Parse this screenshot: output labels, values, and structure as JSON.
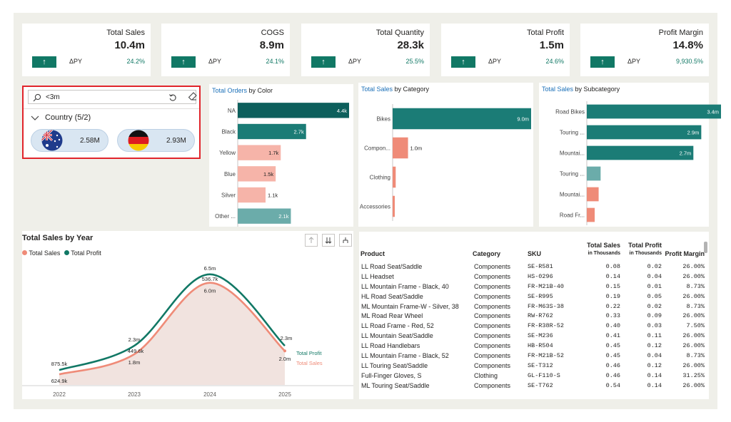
{
  "kpis": [
    {
      "title": "Total Sales",
      "value": "10.4m",
      "dpy": "ΔPY",
      "delta": "24.2%"
    },
    {
      "title": "COGS",
      "value": "8.9m",
      "dpy": "ΔPY",
      "delta": "24.1%"
    },
    {
      "title": "Total Quantity",
      "value": "28.3k",
      "dpy": "ΔPY",
      "delta": "25.5%"
    },
    {
      "title": "Total Profit",
      "value": "1.5m",
      "dpy": "ΔPY",
      "delta": "24.6%"
    },
    {
      "title": "Profit Margin",
      "value": "14.8%",
      "dpy": "ΔPY",
      "delta": "9,930.5%"
    }
  ],
  "kpi_arrow": "↑",
  "slicer": {
    "search_value": "<3m",
    "group_label": "Country (5/2)",
    "items": [
      {
        "flag": "australia-flag",
        "value": "2.58M"
      },
      {
        "flag": "germany-flag",
        "value": "2.93M"
      }
    ]
  },
  "charts": {
    "color": {
      "title_hl": "Total Orders",
      "title_rest": " by Color"
    },
    "category": {
      "title_hl": "Total Sales",
      "title_rest": " by Category"
    },
    "subcategory": {
      "title_hl": "Total Sales",
      "title_rest": " by Subcategory"
    },
    "year": {
      "title": "Total Sales by Year",
      "legend_sales": "Total Sales",
      "legend_profit": "Total Profit",
      "end_label_profit": "Total Profit",
      "end_label_sales": "Total Sales"
    }
  },
  "chart_data": [
    {
      "type": "bar",
      "title": "Total Orders by Color",
      "categories": [
        "NA",
        "Black",
        "Yellow",
        "Blue",
        "Silver",
        "Other ..."
      ],
      "values": [
        4400,
        2700,
        1700,
        1500,
        1100,
        2100
      ],
      "labels": [
        "4.4k",
        "2.7k",
        "1.7k",
        "1.5k",
        "1.1k",
        "2.1k"
      ],
      "colors": [
        "#0d5f5c",
        "#1b7c76",
        "#f6b4a9",
        "#f6b4a9",
        "#f6b4a9",
        "#6bacaa"
      ]
    },
    {
      "type": "bar",
      "title": "Total Sales by Category",
      "categories": [
        "Bikes",
        "Compon...",
        "Clothing",
        "Accessories"
      ],
      "values": [
        9.0,
        1.0,
        0.2,
        0.1
      ],
      "labels": [
        "9.0m",
        "1.0m",
        "",
        ""
      ],
      "colors": [
        "#1b7c76",
        "#ef8b78",
        "#ef8b78",
        "#ef8b78"
      ]
    },
    {
      "type": "bar",
      "title": "Total Sales by Subcategory",
      "categories": [
        "Road Bikes",
        "Touring ...",
        "Mountai...",
        "Touring ...",
        "Mountai...",
        "Road Fr..."
      ],
      "values": [
        3.4,
        2.9,
        2.7,
        0.35,
        0.3,
        0.2
      ],
      "labels": [
        "3.4m",
        "2.9m",
        "2.7m",
        "",
        "",
        ""
      ],
      "colors": [
        "#1b7c76",
        "#1b7c76",
        "#1b7c76",
        "#6bacaa",
        "#ef8b78",
        "#ef8b78"
      ]
    },
    {
      "type": "line",
      "title": "Total Sales by Year",
      "x": [
        "2022",
        "2023",
        "2024",
        "2025"
      ],
      "series": [
        {
          "name": "Total Sales",
          "values": [
            624.9,
            1800,
            6000,
            2000
          ],
          "labels": [
            "624.9k",
            "1.8m",
            "6.0m",
            "2.0m"
          ],
          "color": "#ef8b78"
        },
        {
          "name": "Total Profit",
          "values": [
            875.5,
            2300,
            6500,
            2300
          ],
          "labels": [
            "875.5k",
            "2.3m",
            "6.5m",
            "2.3m"
          ],
          "color": "#117865"
        }
      ],
      "annotations": [
        "449.6k",
        "536.7k"
      ]
    }
  ],
  "table": {
    "headers": {
      "product": "Product",
      "category": "Category",
      "sku": "SKU",
      "sales": "Total Sales",
      "sales_sub": "in Thousands",
      "profit": "Total Profit",
      "profit_sub": "in Thousands",
      "margin": "Profit Margin"
    },
    "rows": [
      [
        "LL Road Seat/Saddle",
        "Components",
        "SE-R581",
        "0.08",
        "0.02",
        "26.00%"
      ],
      [
        "LL Headset",
        "Components",
        "HS-0296",
        "0.14",
        "0.04",
        "26.00%"
      ],
      [
        "LL Mountain Frame - Black, 40",
        "Components",
        "FR-M21B-40",
        "0.15",
        "0.01",
        "8.73%"
      ],
      [
        "HL Road Seat/Saddle",
        "Components",
        "SE-R995",
        "0.19",
        "0.05",
        "26.00%"
      ],
      [
        "ML Mountain Frame-W - Silver, 38",
        "Components",
        "FR-M63S-38",
        "0.22",
        "0.02",
        "8.73%"
      ],
      [
        "ML Road Rear Wheel",
        "Components",
        "RW-R762",
        "0.33",
        "0.09",
        "26.00%"
      ],
      [
        "LL Road Frame - Red, 52",
        "Components",
        "FR-R38R-52",
        "0.40",
        "0.03",
        "7.50%"
      ],
      [
        "LL Mountain Seat/Saddle",
        "Components",
        "SE-M236",
        "0.41",
        "0.11",
        "26.00%"
      ],
      [
        "LL Road Handlebars",
        "Components",
        "HB-R504",
        "0.45",
        "0.12",
        "26.00%"
      ],
      [
        "LL Mountain Frame - Black, 52",
        "Components",
        "FR-M21B-52",
        "0.45",
        "0.04",
        "8.73%"
      ],
      [
        "LL Touring Seat/Saddle",
        "Components",
        "SE-T312",
        "0.46",
        "0.12",
        "26.00%"
      ],
      [
        "Full-Finger Gloves, S",
        "Clothing",
        "GL-F110-S",
        "0.46",
        "0.14",
        "31.25%"
      ],
      [
        "ML Touring Seat/Saddle",
        "Components",
        "SE-T762",
        "0.54",
        "0.14",
        "26.00%"
      ]
    ]
  }
}
